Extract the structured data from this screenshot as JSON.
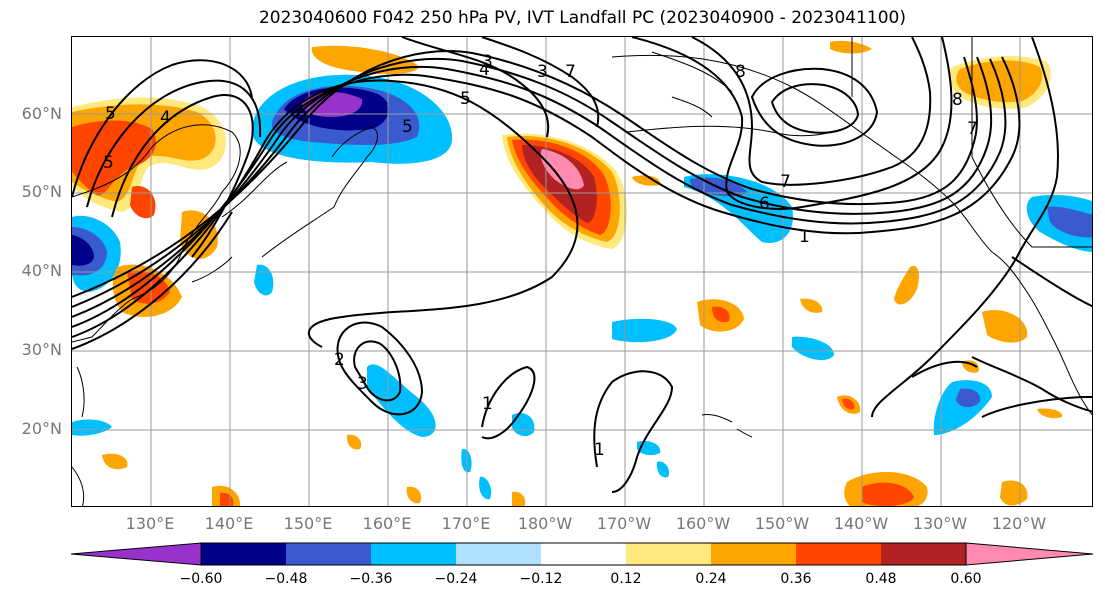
{
  "title": "2023040600 F042 250 hPa PV, IVT Landfall PC (2023040900 - 2023041100)",
  "lat_labels": [
    "60°N",
    "50°N",
    "40°N",
    "30°N",
    "20°N"
  ],
  "lon_labels": [
    "130°E",
    "140°E",
    "150°E",
    "160°E",
    "170°E",
    "180°W",
    "170°W",
    "160°W",
    "150°W",
    "140°W",
    "130°W",
    "120°W"
  ],
  "colorbar": {
    "ticks": [
      "−0.60",
      "−0.48",
      "−0.36",
      "−0.24",
      "−0.12",
      "0.12",
      "0.24",
      "0.36",
      "0.48",
      "0.60"
    ],
    "colors": [
      "#9932cc",
      "#00008b",
      "#3a5bcf",
      "#00bfff",
      "#b0e0ff",
      "#ffffff",
      "#ffe87c",
      "#ffa500",
      "#ff4500",
      "#b22222",
      "#ff8ab0"
    ]
  },
  "contour_labels": [
    "5",
    "4",
    "5",
    "5",
    "4",
    "3",
    "3",
    "7",
    "8",
    "5",
    "7",
    "6",
    "1",
    "7",
    "8",
    "2",
    "3",
    "1",
    "1"
  ]
}
